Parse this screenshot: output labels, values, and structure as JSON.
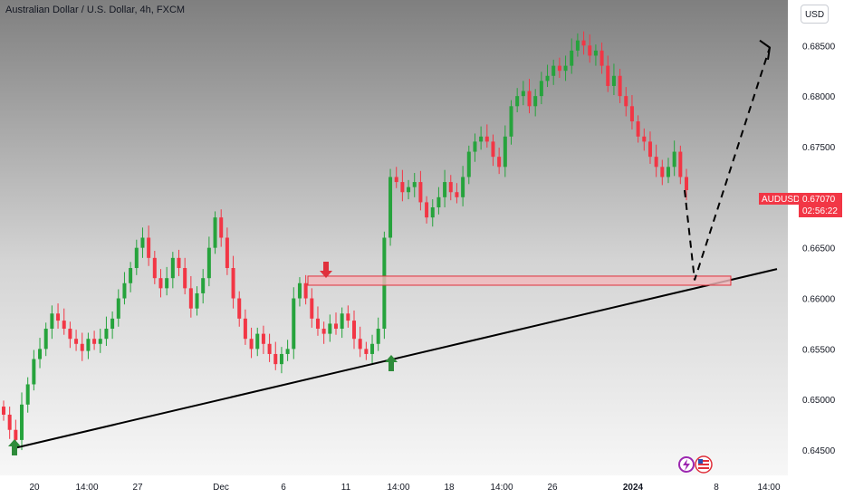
{
  "header": {
    "title": "Australian Dollar / U.S. Dollar, 4h, FXCM",
    "currency_button": "USD"
  },
  "price_tag": {
    "symbol": "AUDUSD",
    "price": "0.67070",
    "countdown": "02:56:22"
  },
  "colors": {
    "up": "#26a33c",
    "down": "#f23645",
    "arrow_up": "#2e8b3a",
    "arrow_down": "#e0303b",
    "zone_fill": "#f2b8bc",
    "zone_stroke": "#e0303b"
  },
  "chart_data": {
    "type": "candlestick",
    "y_ticks": [
      "0.68500",
      "0.68000",
      "0.67500",
      "0.67000",
      "0.66500",
      "0.66000",
      "0.65500",
      "0.65000",
      "0.64500"
    ],
    "x_ticks": [
      "20",
      "14:00",
      "27",
      "Dec",
      "6",
      "11",
      "14:00",
      "18",
      "14:00",
      "26",
      "2024",
      "8",
      "14:00"
    ],
    "ylim": [
      0.6425,
      0.6895
    ],
    "last_price": 0.6707,
    "approx_close_path": [
      0.6485,
      0.647,
      0.646,
      0.6495,
      0.6515,
      0.654,
      0.655,
      0.657,
      0.6585,
      0.6578,
      0.657,
      0.656,
      0.6555,
      0.6548,
      0.656,
      0.6555,
      0.656,
      0.657,
      0.658,
      0.66,
      0.6615,
      0.663,
      0.665,
      0.666,
      0.664,
      0.662,
      0.661,
      0.662,
      0.664,
      0.663,
      0.661,
      0.659,
      0.6605,
      0.662,
      0.665,
      0.668,
      0.666,
      0.663,
      0.66,
      0.658,
      0.656,
      0.655,
      0.6565,
      0.6555,
      0.6545,
      0.6535,
      0.6545,
      0.655,
      0.66,
      0.6615,
      0.66,
      0.658,
      0.657,
      0.6565,
      0.6575,
      0.657,
      0.6585,
      0.6578,
      0.656,
      0.655,
      0.6545,
      0.6555,
      0.657,
      0.666,
      0.672,
      0.6715,
      0.6705,
      0.671,
      0.6715,
      0.6695,
      0.668,
      0.669,
      0.67,
      0.6715,
      0.6705,
      0.67,
      0.672,
      0.6745,
      0.6755,
      0.676,
      0.6755,
      0.674,
      0.673,
      0.676,
      0.679,
      0.68,
      0.6805,
      0.679,
      0.68,
      0.6815,
      0.682,
      0.683,
      0.6825,
      0.683,
      0.6845,
      0.6855,
      0.685,
      0.684,
      0.6845,
      0.683,
      0.681,
      0.682,
      0.68,
      0.679,
      0.6775,
      0.676,
      0.6755,
      0.674,
      0.673,
      0.672,
      0.673,
      0.6745,
      0.672,
      0.6707
    ],
    "annotations": [
      {
        "kind": "support-trendline",
        "from": {
          "x": "20",
          "y": 0.6452
        },
        "to": {
          "x": "14:00",
          "y": 0.6629
        }
      },
      {
        "kind": "resistance-zone",
        "y_top": 0.6622,
        "y_bottom": 0.6613
      },
      {
        "kind": "projection-path",
        "points": [
          0.6707,
          0.6618,
          0.6848
        ]
      },
      {
        "kind": "arrow-up"
      },
      {
        "kind": "arrow-down"
      },
      {
        "kind": "arrow-up"
      }
    ]
  }
}
